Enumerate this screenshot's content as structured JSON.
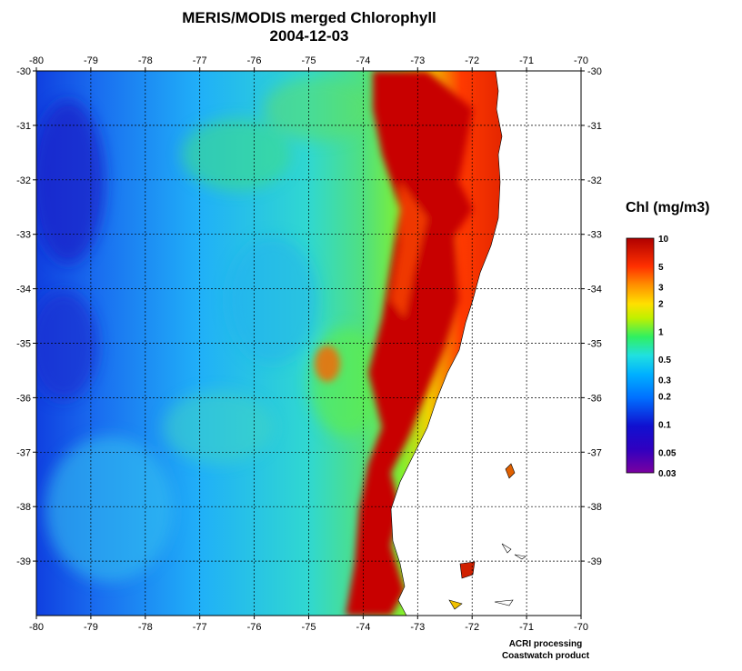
{
  "title": "MERIS/MODIS merged Chlorophyll",
  "date": "2004-12-03",
  "colorbar": {
    "title": "Chl (mg/m3)",
    "labels": [
      "10",
      "5",
      "3",
      "2",
      "1",
      "0.5",
      "0.3",
      "0.2",
      "0.1",
      "0.05",
      "0.03"
    ],
    "values": [
      10,
      5,
      3,
      2,
      1,
      0.5,
      0.3,
      0.2,
      0.1,
      0.05,
      0.03
    ],
    "scale": "log",
    "colors": [
      "#7a00a0",
      "#1010d0",
      "#0090ff",
      "#20e0e0",
      "#30f060",
      "#c0f000",
      "#ffe000",
      "#ff9000",
      "#ff3000",
      "#c00000"
    ]
  },
  "map": {
    "lon_ticks": [
      "-80",
      "-79",
      "-78",
      "-77",
      "-76",
      "-75",
      "-74",
      "-73",
      "-72",
      "-71",
      "-70"
    ],
    "lon_values": [
      -80,
      -79,
      -78,
      -77,
      -76,
      -75,
      -74,
      -73,
      -72,
      -71,
      -70
    ],
    "lat_ticks": [
      "-30",
      "-31",
      "-32",
      "-33",
      "-34",
      "-35",
      "-36",
      "-37",
      "-38",
      "-39"
    ],
    "lat_values": [
      -30,
      -31,
      -32,
      -33,
      -34,
      -35,
      -36,
      -37,
      -38,
      -39
    ],
    "lon_range": [
      -80,
      -70
    ],
    "lat_range": [
      -40,
      -30
    ],
    "gridlines": true,
    "land_color": "#ffffff",
    "ocean_offshore_color": "#1e8cff",
    "coastal_color": "#c80000"
  },
  "footer": {
    "line1": "ACRI processing",
    "line2": "Coastwatch product"
  }
}
